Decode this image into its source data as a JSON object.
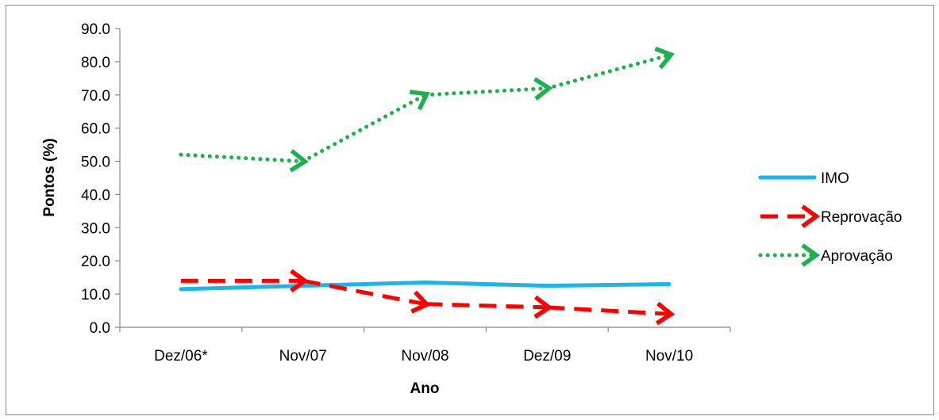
{
  "chart_data": {
    "type": "line",
    "categories": [
      "Dez/06*",
      "Nov/07",
      "Nov/08",
      "Dez/09",
      "Nov/10"
    ],
    "xlabel": "Ano",
    "ylabel": "Pontos (%)",
    "ylim": [
      0,
      90
    ],
    "yticks": [
      "0.0",
      "10.0",
      "20.0",
      "30.0",
      "40.0",
      "50.0",
      "60.0",
      "70.0",
      "80.0",
      "90.0"
    ],
    "grid": false,
    "legend_position": "right",
    "series": [
      {
        "name": "IMO",
        "values": [
          11.5,
          12.5,
          13.5,
          12.5,
          13.0
        ],
        "color": "#1DB4E6",
        "style": "solid"
      },
      {
        "name": "Reprovação",
        "values": [
          14.0,
          14.0,
          7.0,
          6.0,
          4.0
        ],
        "color": "#FF0000",
        "style": "dashed-arrow"
      },
      {
        "name": "Aprovação",
        "values": [
          52.0,
          50.0,
          70.0,
          72.0,
          82.0
        ],
        "color": "#1FAF4F",
        "style": "dotted-arrow"
      }
    ]
  }
}
